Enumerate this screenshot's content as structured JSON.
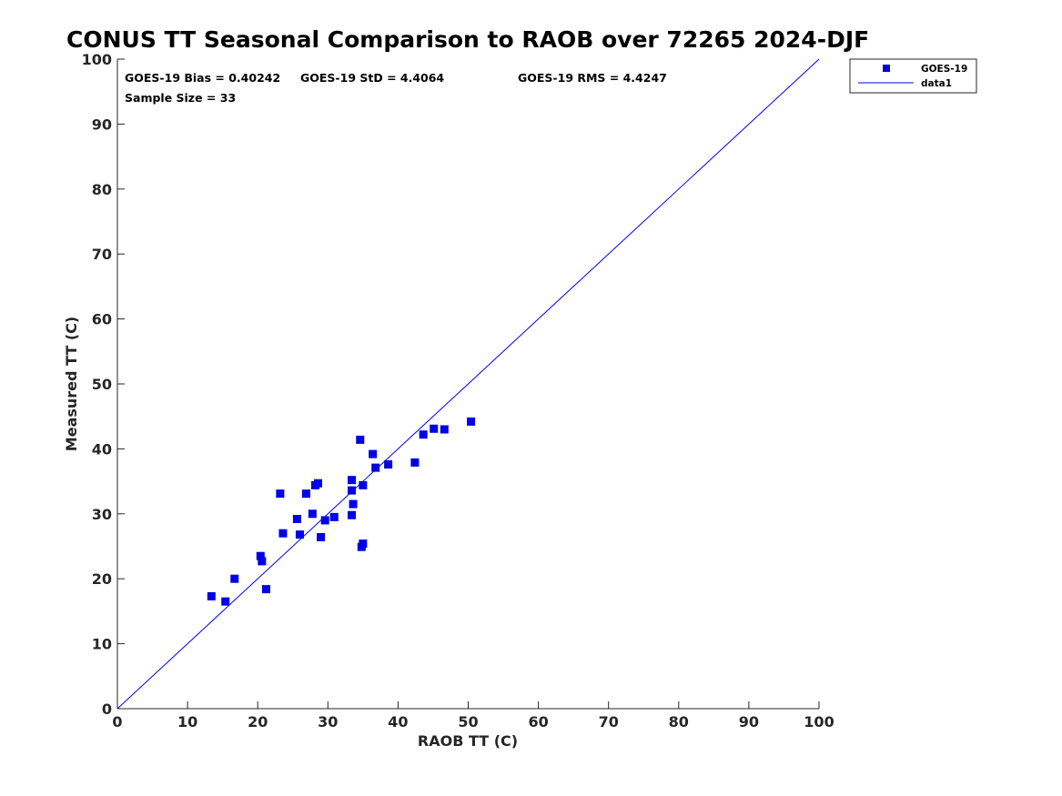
{
  "chart_data": {
    "type": "scatter",
    "title": "CONUS TT Seasonal Comparison to RAOB over 72265 2024-DJF",
    "xlabel": "RAOB TT (C)",
    "ylabel": "Measured TT (C)",
    "xlim": [
      0,
      100
    ],
    "ylim": [
      0,
      100
    ],
    "xticks": [
      0,
      10,
      20,
      30,
      40,
      50,
      60,
      70,
      80,
      90,
      100
    ],
    "yticks": [
      0,
      10,
      20,
      30,
      40,
      50,
      60,
      70,
      80,
      90,
      100
    ],
    "grid": false,
    "legend_position": "top-right",
    "series": [
      {
        "name": "GOES-19",
        "kind": "markers",
        "marker": "square",
        "color": "#0000e6",
        "points": [
          [
            13.4,
            17.3
          ],
          [
            15.4,
            16.5
          ],
          [
            16.7,
            20.0
          ],
          [
            20.4,
            23.5
          ],
          [
            20.6,
            22.7
          ],
          [
            21.2,
            18.4
          ],
          [
            23.2,
            33.1
          ],
          [
            23.6,
            27.0
          ],
          [
            25.6,
            29.2
          ],
          [
            26.0,
            26.8
          ],
          [
            26.9,
            33.1
          ],
          [
            27.8,
            30.0
          ],
          [
            28.2,
            34.4
          ],
          [
            28.6,
            34.7
          ],
          [
            29.0,
            26.4
          ],
          [
            29.6,
            29.0
          ],
          [
            30.9,
            29.5
          ],
          [
            33.4,
            35.2
          ],
          [
            33.4,
            33.6
          ],
          [
            33.4,
            29.8
          ],
          [
            33.6,
            31.5
          ],
          [
            34.6,
            41.4
          ],
          [
            34.8,
            24.9
          ],
          [
            35.0,
            34.4
          ],
          [
            35.0,
            25.4
          ],
          [
            36.4,
            39.2
          ],
          [
            36.8,
            37.1
          ],
          [
            38.6,
            37.6
          ],
          [
            42.4,
            37.9
          ],
          [
            43.6,
            42.2
          ],
          [
            45.1,
            43.1
          ],
          [
            46.6,
            43.0
          ],
          [
            50.4,
            44.2
          ]
        ]
      },
      {
        "name": "data1",
        "kind": "line",
        "color": "#0000e6",
        "points": [
          [
            0,
            0
          ],
          [
            100,
            100
          ]
        ]
      }
    ],
    "annotations": [
      "GOES-19 Bias = 0.40242",
      "GOES-19 StD = 4.4064",
      "GOES-19 RMS = 4.4247",
      "Sample Size = 33"
    ]
  }
}
